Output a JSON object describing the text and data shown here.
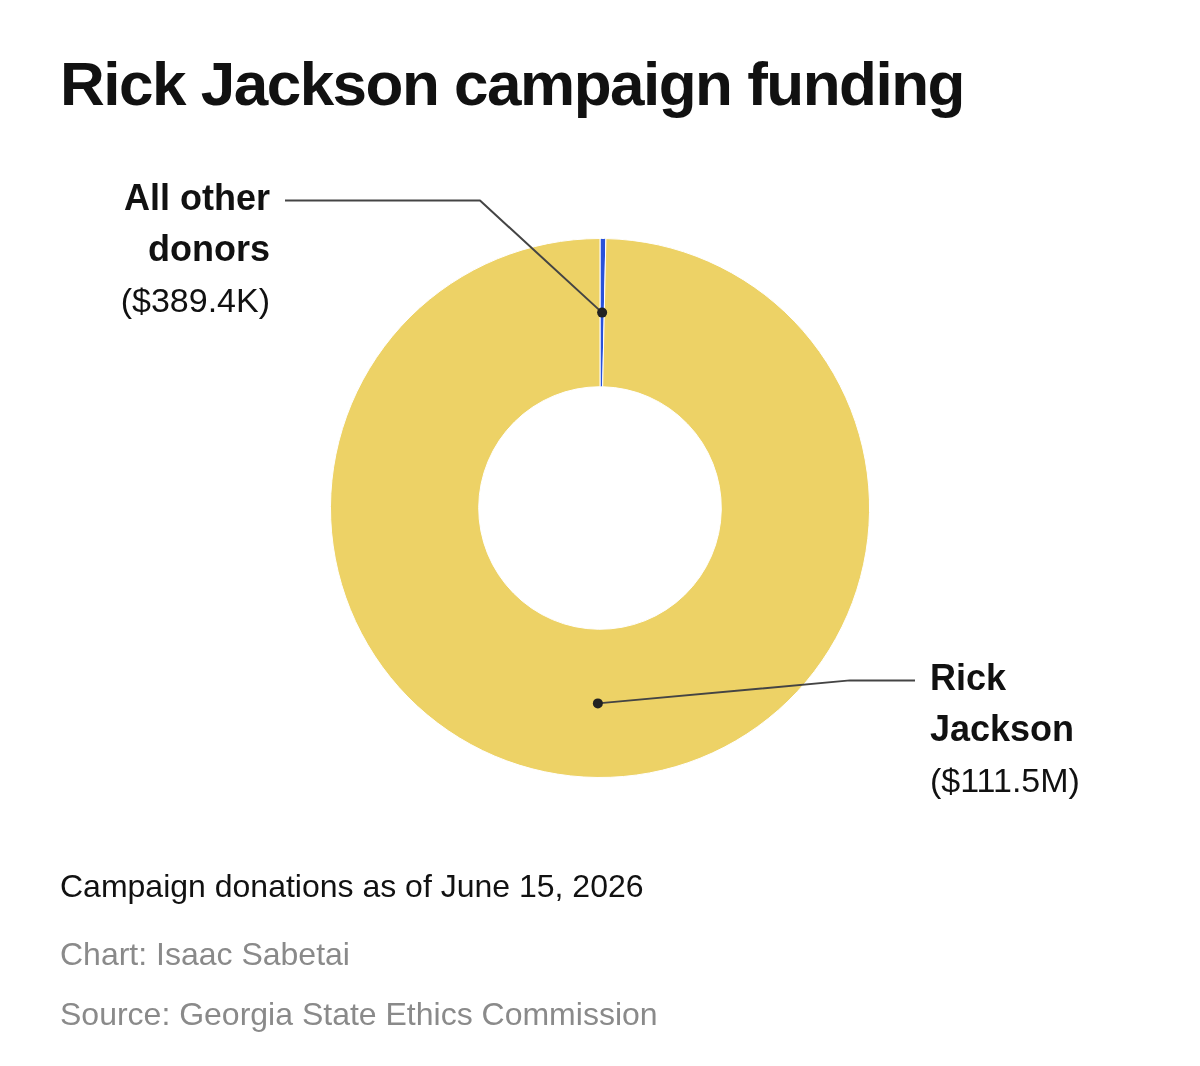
{
  "chart_data": {
    "type": "donut",
    "title": "Rick Jackson campaign funding",
    "categories": [
      "All other donors",
      "Rick Jackson"
    ],
    "values": [
      389400,
      111500000
    ],
    "colors": [
      "#2952d9",
      "#edd266"
    ],
    "value_labels": [
      "($389.4K)",
      "($111.5M)"
    ],
    "annotations": [
      "Campaign donations as of June 15, 2026",
      "Chart: Isaac Sabetai",
      "Source: Georgia State Ethics Commission"
    ],
    "legend": false
  }
}
